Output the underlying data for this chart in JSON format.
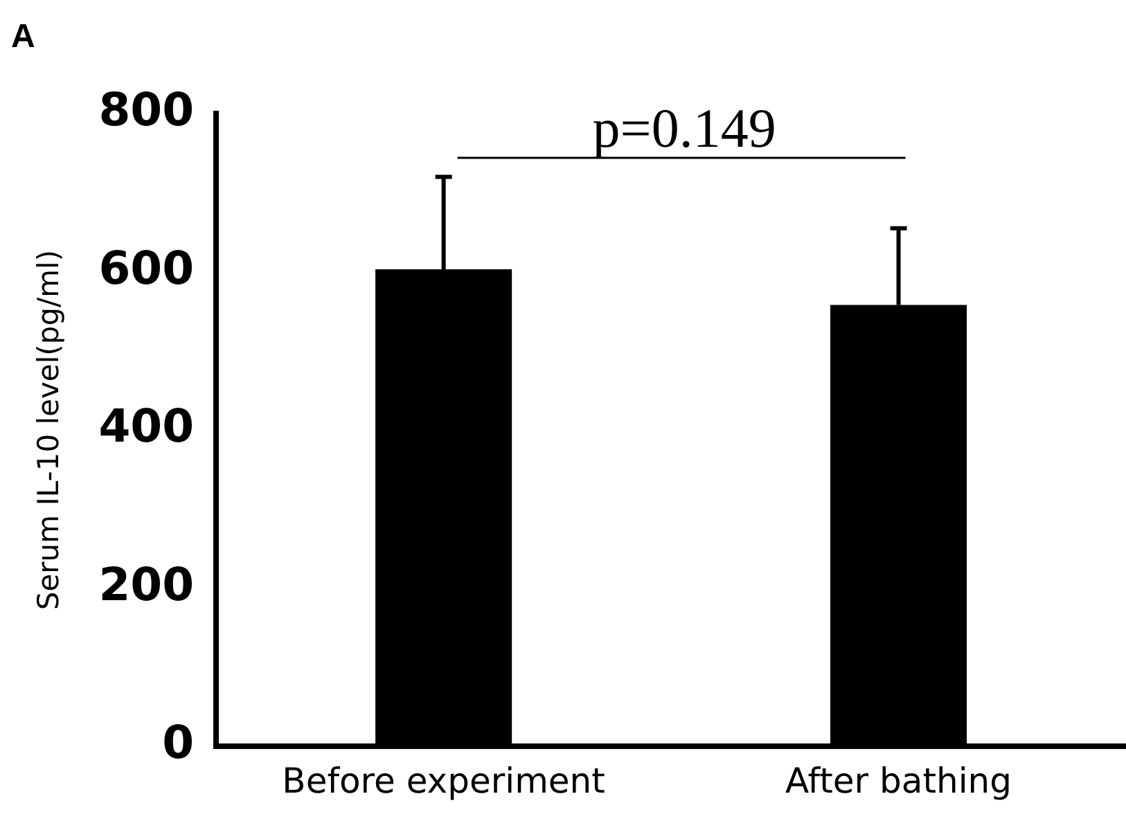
{
  "chart_data": {
    "type": "bar",
    "ylabel": "Serum IL-10 level(pg/ml)",
    "categories": [
      "Before experiment",
      "After bathing"
    ],
    "values": [
      603,
      558
    ],
    "color": "#000000",
    "errors": [
      [
        603,
        720
      ],
      [
        558,
        655
      ]
    ],
    "ylim": [
      0,
      800
    ],
    "yticks": [
      0,
      200,
      400,
      600,
      800
    ],
    "grid": false,
    "legend": false,
    "annotations": [
      "A",
      "p=0.149"
    ]
  }
}
